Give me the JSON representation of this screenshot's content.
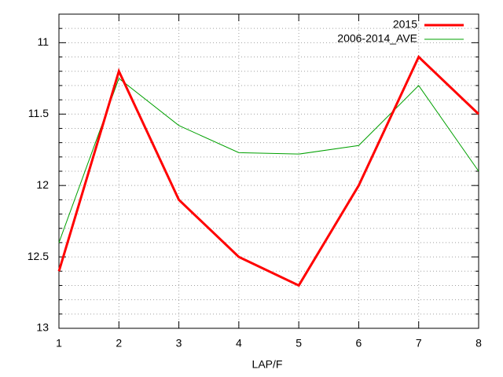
{
  "chart_data": {
    "type": "line",
    "x_label": "LAP/F",
    "x": [
      1,
      2,
      3,
      4,
      5,
      6,
      7,
      8
    ],
    "xlim": [
      1,
      8
    ],
    "xticks": [
      1,
      2,
      3,
      4,
      5,
      6,
      7,
      8
    ],
    "ylim": [
      13,
      10.8
    ],
    "y_reversed": true,
    "yticks": [
      11,
      11.5,
      12,
      12.5,
      13
    ],
    "yticks_minor": [
      10.9,
      11.1,
      11.2,
      11.3,
      11.4,
      11.6,
      11.7,
      11.8,
      11.9,
      12.1,
      12.2,
      12.3,
      12.4,
      12.6,
      12.7,
      12.8,
      12.9
    ],
    "grid": true,
    "legend": "top-right",
    "series": [
      {
        "name": "2015",
        "color": "#ff0000",
        "width": 3,
        "values": [
          12.6,
          11.2,
          12.1,
          12.5,
          12.7,
          12.0,
          11.1,
          11.5
        ]
      },
      {
        "name": "2006-2014_AVE",
        "color": "#00a000",
        "width": 1,
        "values": [
          12.4,
          11.25,
          11.58,
          11.77,
          11.78,
          11.72,
          11.3,
          11.9
        ]
      }
    ]
  }
}
